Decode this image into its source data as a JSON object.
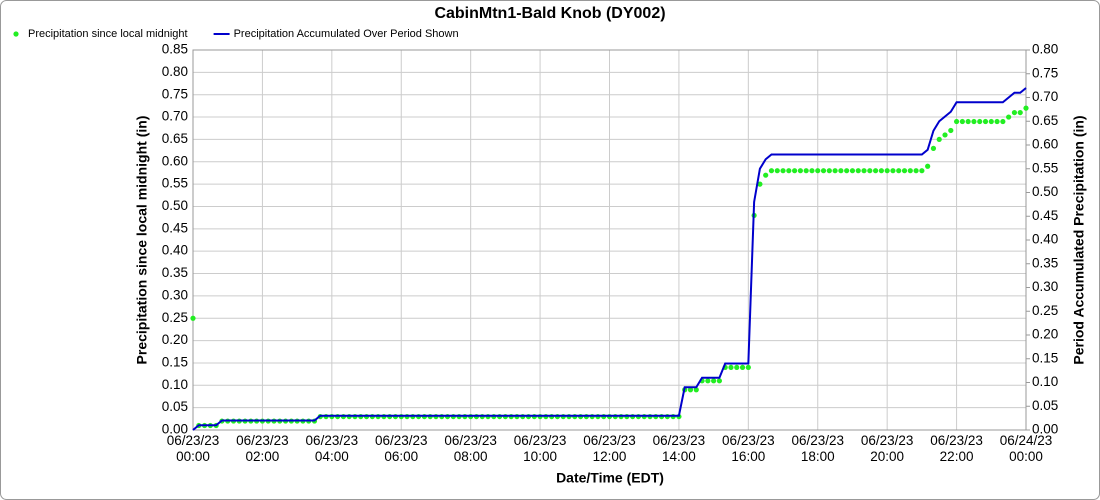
{
  "chart_data": {
    "type": "line",
    "title": "CabinMtn1-Bald Knob (DY002)",
    "x_label": "Date/Time (EDT)",
    "y_label": "Precipitation since local midnight (in)",
    "y2_label": "Period Accumulated Precipitation (in)",
    "grid": true,
    "legend": "top-left",
    "x": [
      "06/23/23 00:00",
      "06/23/23 00:10",
      "06/23/23 00:20",
      "06/23/23 00:30",
      "06/23/23 00:40",
      "06/23/23 00:50",
      "06/23/23 01:00",
      "06/23/23 01:10",
      "06/23/23 01:20",
      "06/23/23 01:30",
      "06/23/23 01:40",
      "06/23/23 01:50",
      "06/23/23 02:00",
      "06/23/23 02:10",
      "06/23/23 02:20",
      "06/23/23 02:30",
      "06/23/23 02:40",
      "06/23/23 02:50",
      "06/23/23 03:00",
      "06/23/23 03:10",
      "06/23/23 03:20",
      "06/23/23 03:30",
      "06/23/23 03:40",
      "06/23/23 03:50",
      "06/23/23 04:00",
      "06/23/23 04:10",
      "06/23/23 04:20",
      "06/23/23 04:30",
      "06/23/23 04:40",
      "06/23/23 04:50",
      "06/23/23 05:00",
      "06/23/23 05:10",
      "06/23/23 05:20",
      "06/23/23 05:30",
      "06/23/23 05:40",
      "06/23/23 05:50",
      "06/23/23 06:00",
      "06/23/23 06:10",
      "06/23/23 06:20",
      "06/23/23 06:30",
      "06/23/23 06:40",
      "06/23/23 06:50",
      "06/23/23 07:00",
      "06/23/23 07:10",
      "06/23/23 07:20",
      "06/23/23 07:30",
      "06/23/23 07:40",
      "06/23/23 07:50",
      "06/23/23 08:00",
      "06/23/23 08:10",
      "06/23/23 08:20",
      "06/23/23 08:30",
      "06/23/23 08:40",
      "06/23/23 08:50",
      "06/23/23 09:00",
      "06/23/23 09:10",
      "06/23/23 09:20",
      "06/23/23 09:30",
      "06/23/23 09:40",
      "06/23/23 09:50",
      "06/23/23 10:00",
      "06/23/23 10:10",
      "06/23/23 10:20",
      "06/23/23 10:30",
      "06/23/23 10:40",
      "06/23/23 10:50",
      "06/23/23 11:00",
      "06/23/23 11:10",
      "06/23/23 11:20",
      "06/23/23 11:30",
      "06/23/23 11:40",
      "06/23/23 11:50",
      "06/23/23 12:00",
      "06/23/23 12:10",
      "06/23/23 12:20",
      "06/23/23 12:30",
      "06/23/23 12:40",
      "06/23/23 12:50",
      "06/23/23 13:00",
      "06/23/23 13:10",
      "06/23/23 13:20",
      "06/23/23 13:30",
      "06/23/23 13:40",
      "06/23/23 13:50",
      "06/23/23 14:00",
      "06/23/23 14:10",
      "06/23/23 14:20",
      "06/23/23 14:30",
      "06/23/23 14:40",
      "06/23/23 14:50",
      "06/23/23 15:00",
      "06/23/23 15:10",
      "06/23/23 15:20",
      "06/23/23 15:30",
      "06/23/23 15:40",
      "06/23/23 15:50",
      "06/23/23 16:00",
      "06/23/23 16:10",
      "06/23/23 16:20",
      "06/23/23 16:30",
      "06/23/23 16:40",
      "06/23/23 16:50",
      "06/23/23 17:00",
      "06/23/23 17:10",
      "06/23/23 17:20",
      "06/23/23 17:30",
      "06/23/23 17:40",
      "06/23/23 17:50",
      "06/23/23 18:00",
      "06/23/23 18:10",
      "06/23/23 18:20",
      "06/23/23 18:30",
      "06/23/23 18:40",
      "06/23/23 18:50",
      "06/23/23 19:00",
      "06/23/23 19:10",
      "06/23/23 19:20",
      "06/23/23 19:30",
      "06/23/23 19:40",
      "06/23/23 19:50",
      "06/23/23 20:00",
      "06/23/23 20:10",
      "06/23/23 20:20",
      "06/23/23 20:30",
      "06/23/23 20:40",
      "06/23/23 20:50",
      "06/23/23 21:00",
      "06/23/23 21:10",
      "06/23/23 21:20",
      "06/23/23 21:30",
      "06/23/23 21:40",
      "06/23/23 21:50",
      "06/23/23 22:00",
      "06/23/23 22:10",
      "06/23/23 22:20",
      "06/23/23 22:30",
      "06/23/23 22:40",
      "06/23/23 22:50",
      "06/23/23 23:00",
      "06/23/23 23:10",
      "06/23/23 23:20",
      "06/23/23 23:30",
      "06/23/23 23:40",
      "06/23/23 23:50",
      "06/24/23 00:00"
    ],
    "series": [
      {
        "name": "Precipitation since local midnight",
        "color": "#22ee22",
        "mode": "markers",
        "values": [
          0.25,
          0.01,
          0.01,
          0.01,
          0.01,
          0.02,
          0.02,
          0.02,
          0.02,
          0.02,
          0.02,
          0.02,
          0.02,
          0.02,
          0.02,
          0.02,
          0.02,
          0.02,
          0.02,
          0.02,
          0.02,
          0.02,
          0.03,
          0.03,
          0.03,
          0.03,
          0.03,
          0.03,
          0.03,
          0.03,
          0.03,
          0.03,
          0.03,
          0.03,
          0.03,
          0.03,
          0.03,
          0.03,
          0.03,
          0.03,
          0.03,
          0.03,
          0.03,
          0.03,
          0.03,
          0.03,
          0.03,
          0.03,
          0.03,
          0.03,
          0.03,
          0.03,
          0.03,
          0.03,
          0.03,
          0.03,
          0.03,
          0.03,
          0.03,
          0.03,
          0.03,
          0.03,
          0.03,
          0.03,
          0.03,
          0.03,
          0.03,
          0.03,
          0.03,
          0.03,
          0.03,
          0.03,
          0.03,
          0.03,
          0.03,
          0.03,
          0.03,
          0.03,
          0.03,
          0.03,
          0.03,
          0.03,
          0.03,
          0.03,
          0.03,
          0.09,
          0.09,
          0.09,
          0.11,
          0.11,
          0.11,
          0.11,
          0.14,
          0.14,
          0.14,
          0.14,
          0.14,
          0.48,
          0.55,
          0.57,
          0.58,
          0.58,
          0.58,
          0.58,
          0.58,
          0.58,
          0.58,
          0.58,
          0.58,
          0.58,
          0.58,
          0.58,
          0.58,
          0.58,
          0.58,
          0.58,
          0.58,
          0.58,
          0.58,
          0.58,
          0.58,
          0.58,
          0.58,
          0.58,
          0.58,
          0.58,
          0.58,
          0.59,
          0.63,
          0.65,
          0.66,
          0.67,
          0.69,
          0.69,
          0.69,
          0.69,
          0.69,
          0.69,
          0.69,
          0.69,
          0.69,
          0.7,
          0.71,
          0.71,
          0.72
        ]
      },
      {
        "name": "Precipitation Accumulated Over Period Shown",
        "color": "#0000cc",
        "mode": "line",
        "axis": "y2",
        "values": [
          0,
          0.01,
          0.01,
          0.01,
          0.01,
          0.02,
          0.02,
          0.02,
          0.02,
          0.02,
          0.02,
          0.02,
          0.02,
          0.02,
          0.02,
          0.02,
          0.02,
          0.02,
          0.02,
          0.02,
          0.02,
          0.02,
          0.03,
          0.03,
          0.03,
          0.03,
          0.03,
          0.03,
          0.03,
          0.03,
          0.03,
          0.03,
          0.03,
          0.03,
          0.03,
          0.03,
          0.03,
          0.03,
          0.03,
          0.03,
          0.03,
          0.03,
          0.03,
          0.03,
          0.03,
          0.03,
          0.03,
          0.03,
          0.03,
          0.03,
          0.03,
          0.03,
          0.03,
          0.03,
          0.03,
          0.03,
          0.03,
          0.03,
          0.03,
          0.03,
          0.03,
          0.03,
          0.03,
          0.03,
          0.03,
          0.03,
          0.03,
          0.03,
          0.03,
          0.03,
          0.03,
          0.03,
          0.03,
          0.03,
          0.03,
          0.03,
          0.03,
          0.03,
          0.03,
          0.03,
          0.03,
          0.03,
          0.03,
          0.03,
          0.03,
          0.09,
          0.09,
          0.09,
          0.11,
          0.11,
          0.11,
          0.11,
          0.14,
          0.14,
          0.14,
          0.14,
          0.14,
          0.48,
          0.55,
          0.57,
          0.58,
          0.58,
          0.58,
          0.58,
          0.58,
          0.58,
          0.58,
          0.58,
          0.58,
          0.58,
          0.58,
          0.58,
          0.58,
          0.58,
          0.58,
          0.58,
          0.58,
          0.58,
          0.58,
          0.58,
          0.58,
          0.58,
          0.58,
          0.58,
          0.58,
          0.58,
          0.58,
          0.59,
          0.63,
          0.65,
          0.66,
          0.67,
          0.69,
          0.69,
          0.69,
          0.69,
          0.69,
          0.69,
          0.69,
          0.69,
          0.69,
          0.7,
          0.71,
          0.71,
          0.72
        ]
      }
    ],
    "xlim": [
      "06/23/23 00:00",
      "06/24/23 00:00"
    ],
    "xticks": [
      "06/23/23 00:00",
      "06/23/23 02:00",
      "06/23/23 04:00",
      "06/23/23 06:00",
      "06/23/23 08:00",
      "06/23/23 10:00",
      "06/23/23 12:00",
      "06/23/23 14:00",
      "06/23/23 16:00",
      "06/23/23 18:00",
      "06/23/23 20:00",
      "06/23/23 22:00",
      "06/24/23 00:00"
    ],
    "ylim": [
      0,
      0.85
    ],
    "yticks": [
      {
        "value": 0,
        "label": "0.00"
      },
      {
        "value": 0.05,
        "label": "0.05"
      },
      {
        "value": 0.1,
        "label": "0.10"
      },
      {
        "value": 0.15,
        "label": "0.15"
      },
      {
        "value": 0.2,
        "label": "0.20"
      },
      {
        "value": 0.25,
        "label": "0.25"
      },
      {
        "value": 0.3,
        "label": "0.30"
      },
      {
        "value": 0.35,
        "label": "0.35"
      },
      {
        "value": 0.4,
        "label": "0.40"
      },
      {
        "value": 0.45,
        "label": "0.45"
      },
      {
        "value": 0.5,
        "label": "0.50"
      },
      {
        "value": 0.55,
        "label": "0.55"
      },
      {
        "value": 0.6,
        "label": "0.60"
      },
      {
        "value": 0.65,
        "label": "0.65"
      },
      {
        "value": 0.7,
        "label": "0.70"
      },
      {
        "value": 0.75,
        "label": "0.75"
      },
      {
        "value": 0.8,
        "label": "0.80"
      },
      {
        "value": 0.85,
        "label": "0.85"
      }
    ],
    "y2lim": [
      0,
      0.8
    ],
    "y2ticks": [
      {
        "value": 0,
        "label": "0.00"
      },
      {
        "value": 0.05,
        "label": "0.05"
      },
      {
        "value": 0.1,
        "label": "0.10"
      },
      {
        "value": 0.15,
        "label": "0.15"
      },
      {
        "value": 0.2,
        "label": "0.20"
      },
      {
        "value": 0.25,
        "label": "0.25"
      },
      {
        "value": 0.3,
        "label": "0.30"
      },
      {
        "value": 0.35,
        "label": "0.35"
      },
      {
        "value": 0.4,
        "label": "0.40"
      },
      {
        "value": 0.45,
        "label": "0.45"
      },
      {
        "value": 0.5,
        "label": "0.50"
      },
      {
        "value": 0.55,
        "label": "0.55"
      },
      {
        "value": 0.6,
        "label": "0.60"
      },
      {
        "value": 0.65,
        "label": "0.65"
      },
      {
        "value": 0.7,
        "label": "0.70"
      },
      {
        "value": 0.75,
        "label": "0.75"
      },
      {
        "value": 0.8,
        "label": "0.80"
      }
    ]
  }
}
